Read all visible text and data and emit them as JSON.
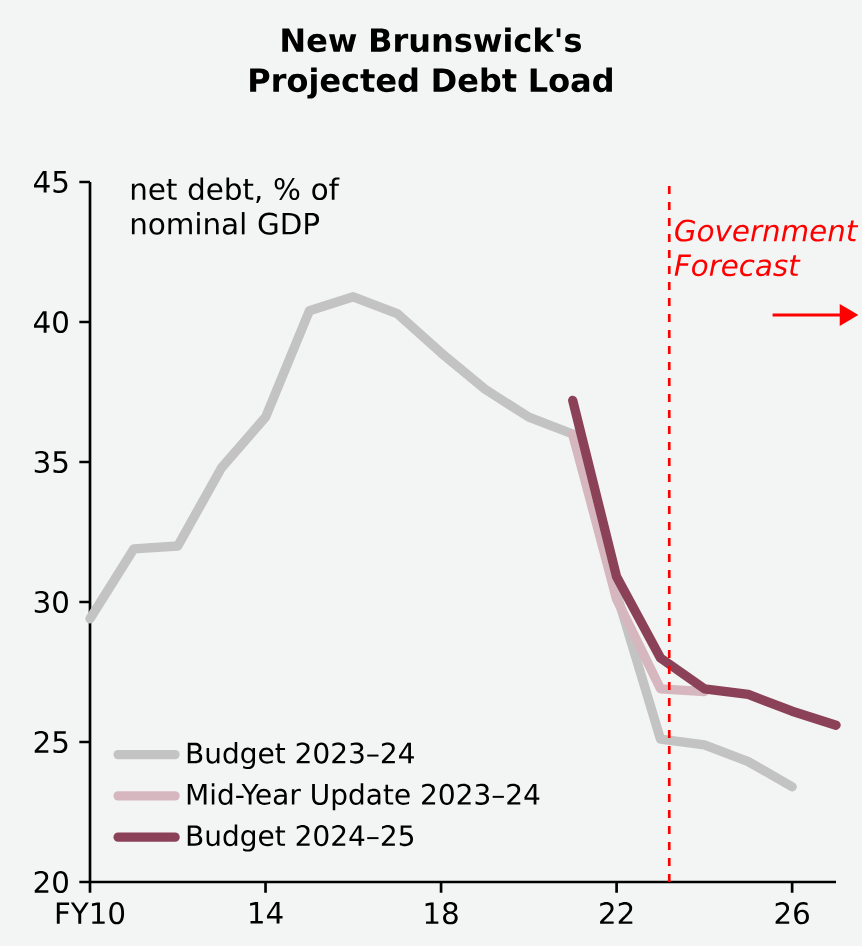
{
  "chart_data": {
    "type": "line",
    "title": "New Brunswick's Projected Debt Load",
    "ylabel": "net debt, % of nominal GDP",
    "annotations": [
      "Government Forecast"
    ],
    "xlim": [
      10,
      27
    ],
    "xticks": [
      {
        "value": 10,
        "label": "FY10"
      },
      14,
      18,
      22,
      26
    ],
    "ylim": [
      20,
      45
    ],
    "yticks": [
      20,
      25,
      30,
      35,
      40,
      45
    ],
    "series": [
      {
        "name": "Budget 2023–24",
        "color": "#c3c3c3",
        "x": [
          10,
          11,
          12,
          13,
          14,
          15,
          16,
          17,
          18,
          19,
          20,
          21,
          22,
          23,
          24,
          25,
          26
        ],
        "values": [
          29.4,
          31.9,
          32.0,
          34.8,
          36.6,
          40.4,
          40.9,
          40.3,
          38.9,
          37.6,
          36.6,
          36.0,
          30.3,
          25.1,
          24.9,
          24.3,
          23.4
        ]
      },
      {
        "name": "Mid-Year Update 2023–24",
        "color": "#d6b7bf",
        "x": [
          21,
          22,
          23,
          24
        ],
        "values": [
          36.0,
          30.1,
          26.9,
          26.8
        ]
      },
      {
        "name": "Budget 2024–25",
        "color": "#8b4157",
        "x": [
          21,
          22,
          23,
          24,
          25,
          26,
          27
        ],
        "values": [
          37.2,
          30.9,
          28.0,
          26.9,
          26.7,
          26.1,
          25.6
        ]
      }
    ],
    "ref_lines": [
      {
        "axis": "x",
        "value": 23.2,
        "color": "#ff0000",
        "line_style": "dashed"
      }
    ],
    "grid": false,
    "legend": "bottom left",
    "marker": "none",
    "line_style": "solid"
  }
}
